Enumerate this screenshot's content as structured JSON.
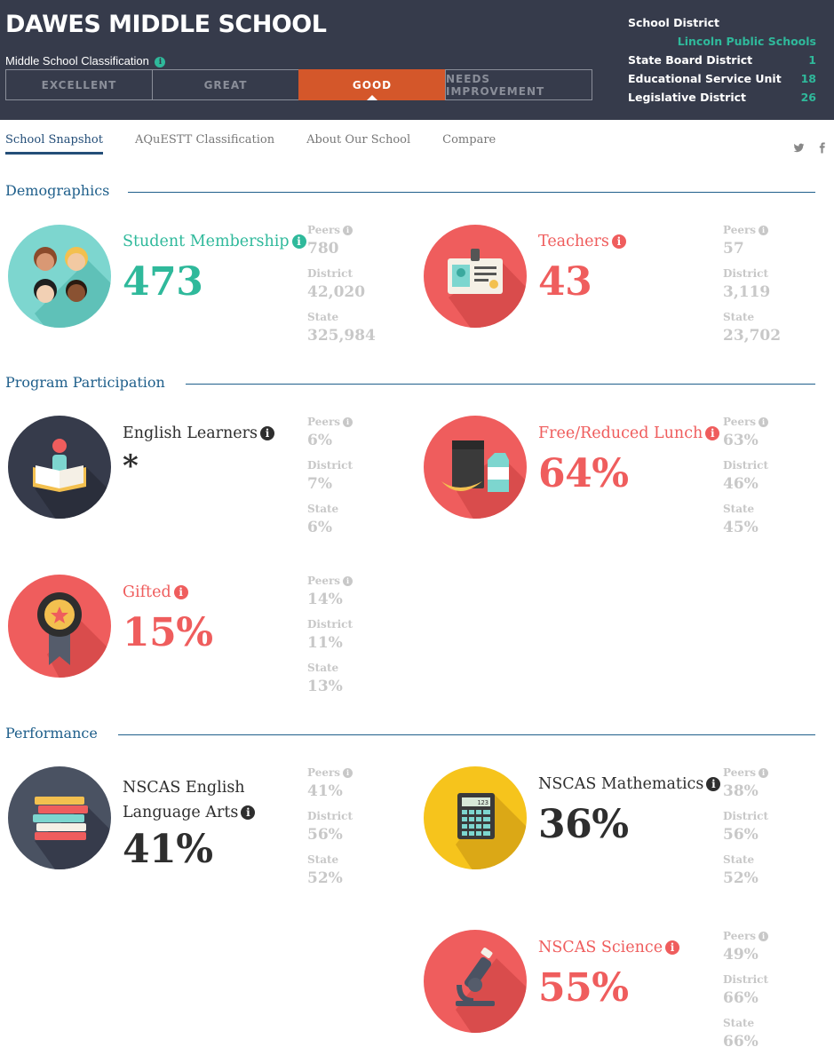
{
  "header": {
    "school_name": "DAWES MIDDLE SCHOOL",
    "classification_label": "Middle School Classification",
    "classifications": [
      "EXCELLENT",
      "GREAT",
      "GOOD",
      "NEEDS IMPROVEMENT"
    ],
    "active_classification": "GOOD",
    "district": {
      "school_district_label": "School District",
      "school_district_value": "Lincoln Public Schools",
      "state_board_label": "State Board District",
      "state_board_value": "1",
      "esu_label": "Educational Service Unit",
      "esu_value": "18",
      "legislative_label": "Legislative District",
      "legislative_value": "26"
    }
  },
  "tabs": [
    "School Snapshot",
    "AQuESTT Classification",
    "About Our School",
    "Compare"
  ],
  "social": {
    "twitter_icon": "twitter-icon",
    "facebook_icon": "facebook-icon"
  },
  "sections": {
    "demographics": "Demographics",
    "program": "Program Participation",
    "performance": "Performance"
  },
  "compare_labels": {
    "peers": "Peers",
    "district": "District",
    "state": "State"
  },
  "metrics": {
    "membership": {
      "title": "Student Membership",
      "value": "473",
      "peers": "780",
      "district": "42,020",
      "state": "325,984",
      "icon": "students-icon",
      "color": "#2fb99b"
    },
    "teachers": {
      "title": "Teachers",
      "value": "43",
      "peers": "57",
      "district": "3,119",
      "state": "23,702",
      "icon": "id-badge-icon",
      "color": "#ef5d5d"
    },
    "ell": {
      "title": "English Learners",
      "value": "*",
      "peers": "6%",
      "district": "7%",
      "state": "6%",
      "icon": "book-reader-icon",
      "color": "#363b4b"
    },
    "lunch": {
      "title": "Free/Reduced Lunch",
      "value": "64%",
      "peers": "63%",
      "district": "46%",
      "state": "45%",
      "icon": "lunch-bag-icon",
      "color": "#ef5d5d"
    },
    "gifted": {
      "title": "Gifted",
      "value": "15%",
      "peers": "14%",
      "district": "11%",
      "state": "13%",
      "icon": "award-ribbon-icon",
      "color": "#ef5d5d"
    },
    "ela": {
      "title_line1": "NSCAS English",
      "title_line2": "Language Arts",
      "value": "41%",
      "peers": "41%",
      "district": "56%",
      "state": "52%",
      "icon": "books-icon",
      "color": "#363b4b"
    },
    "math": {
      "title": "NSCAS Mathematics",
      "value": "36%",
      "peers": "38%",
      "district": "56%",
      "state": "52%",
      "icon": "calculator-icon",
      "color": "#f6c41c",
      "calc_display": "123"
    },
    "science": {
      "title": "NSCAS Science",
      "value": "55%",
      "peers": "49%",
      "district": "66%",
      "state": "66%",
      "icon": "microscope-icon",
      "color": "#ef5d5d"
    }
  }
}
